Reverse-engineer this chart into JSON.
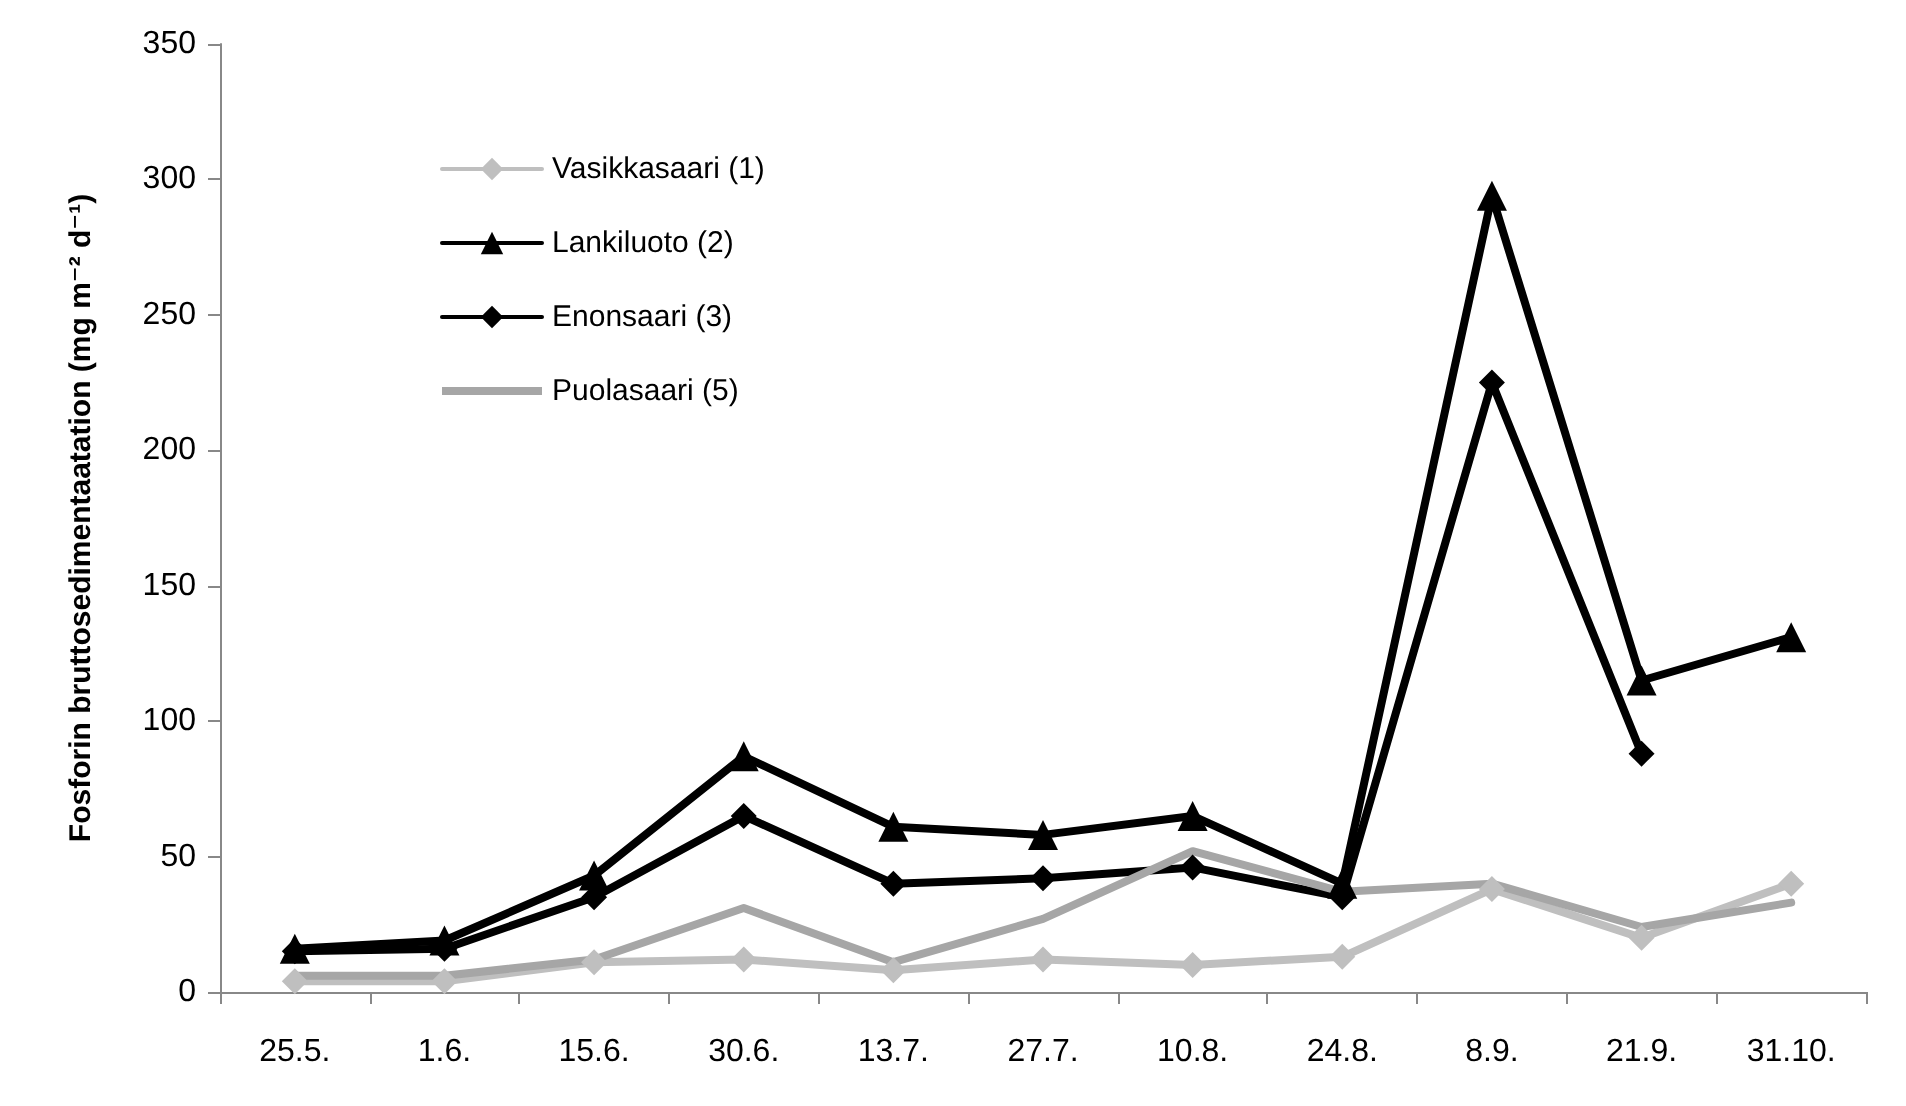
{
  "chart_data": {
    "type": "line",
    "ylabel": "Fosforin bruttosedimentaatation (mg m⁻² d⁻¹)",
    "categories": [
      "25.5.",
      "1.6.",
      "15.6.",
      "30.6.",
      "13.7.",
      "27.7.",
      "10.8.",
      "24.8.",
      "8.9.",
      "21.9.",
      "31.10."
    ],
    "series": [
      {
        "name": "Vasikkasaari (1)",
        "color": "#bfbfbf",
        "marker": "diamond",
        "values": [
          4,
          4,
          11,
          12,
          8,
          12,
          10,
          13,
          38,
          20,
          40
        ]
      },
      {
        "name": "Lankiluoto (2)",
        "color": "#000000",
        "marker": "triangle",
        "values": [
          16,
          19,
          43,
          87,
          61,
          58,
          65,
          40,
          294,
          115,
          131
        ]
      },
      {
        "name": "Enonsaari (3)",
        "color": "#000000",
        "marker": "diamond",
        "values": [
          15,
          16,
          35,
          65,
          40,
          42,
          46,
          35,
          225,
          88,
          null
        ]
      },
      {
        "name": "Puolasaari (5)",
        "color": "#a6a6a6",
        "marker": "none",
        "values": [
          6,
          6,
          12,
          31,
          11,
          27,
          52,
          37,
          40,
          24,
          33
        ]
      }
    ],
    "ylim": [
      0,
      350
    ],
    "yticks": [
      0,
      50,
      100,
      150,
      200,
      250,
      300,
      350
    ],
    "grid": false,
    "legend": "top left",
    "line_style": "solid"
  }
}
